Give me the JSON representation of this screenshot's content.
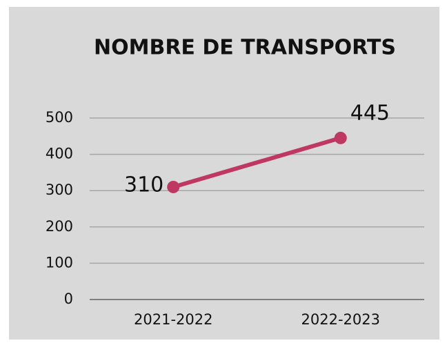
{
  "chart_data": {
    "type": "line",
    "title": "NOMBRE DE TRANSPORTS",
    "categories": [
      "2021-2022",
      "2022-2023"
    ],
    "values": [
      310,
      445
    ],
    "color": "#bf3862",
    "ylim": [
      0,
      500
    ],
    "yticks": [
      0,
      100,
      200,
      300,
      400,
      500
    ],
    "grid": true
  }
}
